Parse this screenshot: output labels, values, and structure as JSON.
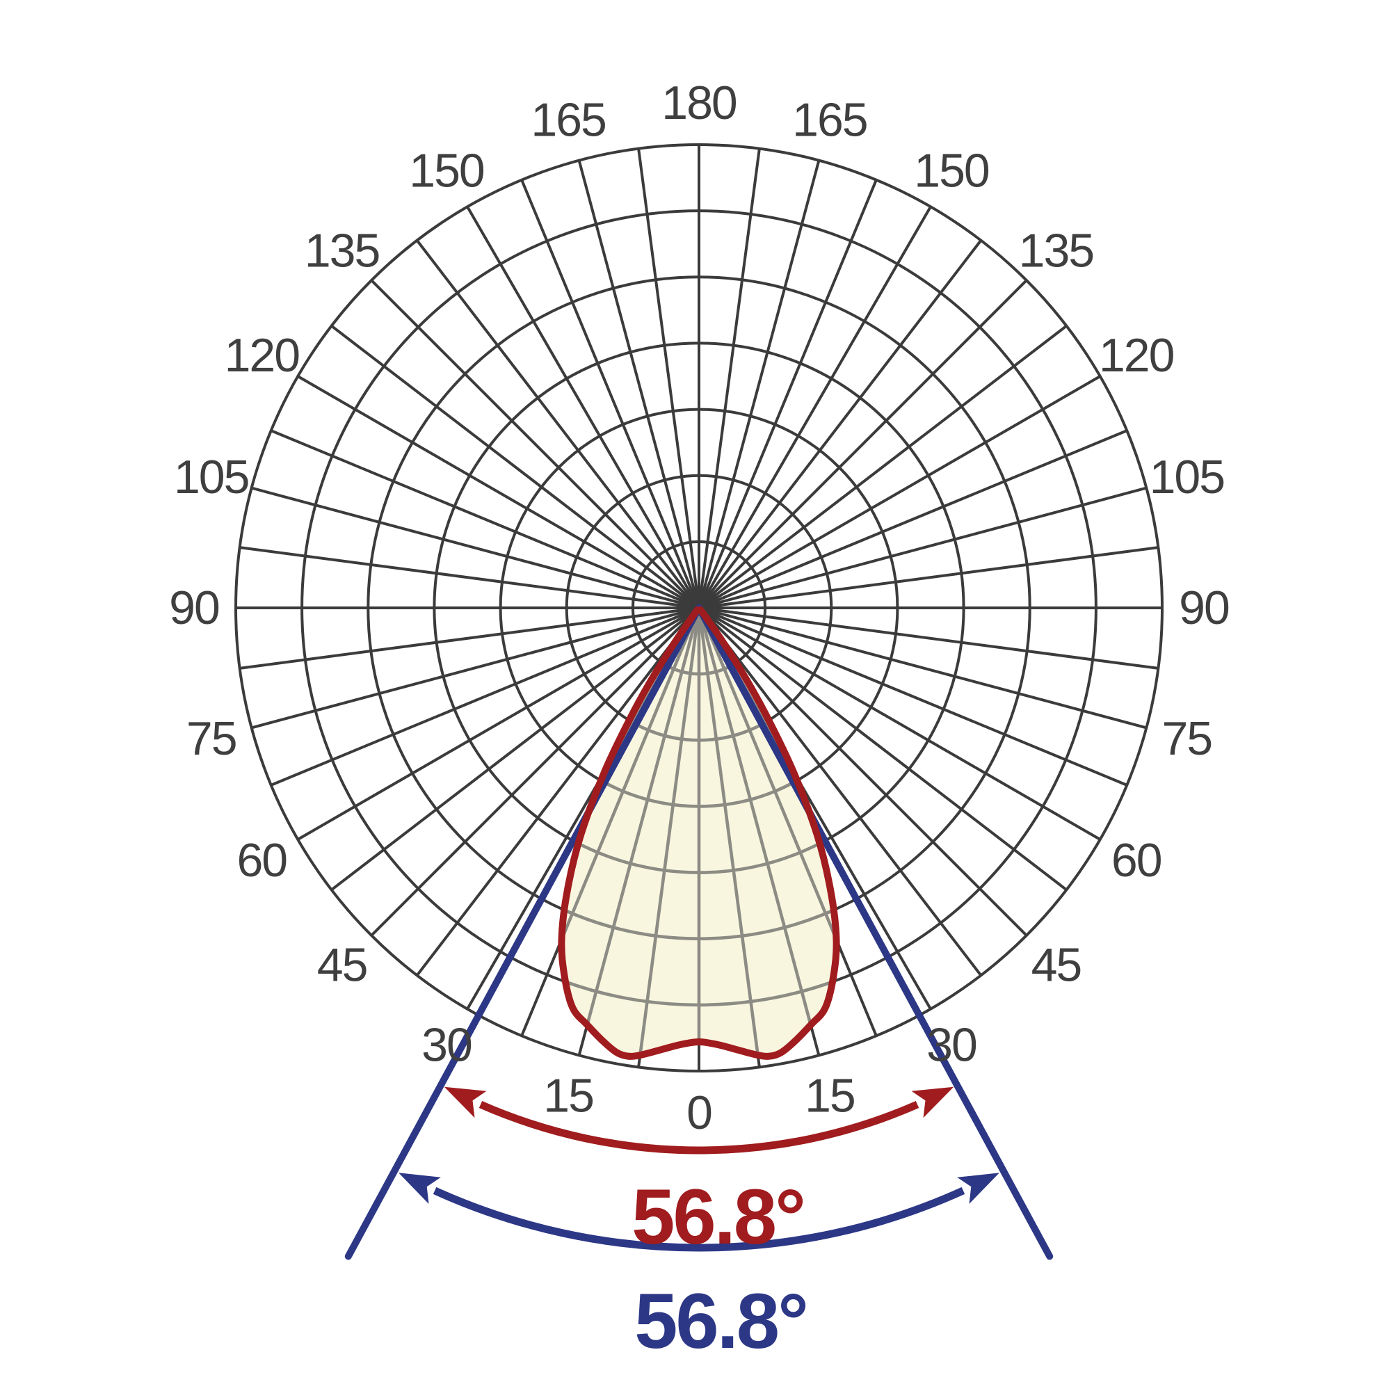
{
  "chart_data": {
    "type": "line",
    "subtype": "polar-photometric-luminous-intensity-diagram",
    "title": "",
    "angle_unit": "degrees",
    "angle_tick_step_deg": 15,
    "angle_grid_step_deg": 7.5,
    "radial_rings": 7,
    "angle_axis_range": [
      0,
      180
    ],
    "grid_on": true,
    "background": "#FFFFFF",
    "grid_color": "#3B3B3B",
    "grid_color_inside_beam": "#8C8C84",
    "tick_label_color": "#3F3F3F",
    "angle_ticks": [
      "0",
      "15",
      "30",
      "45",
      "60",
      "75",
      "90",
      "105",
      "120",
      "135",
      "150",
      "165",
      "180"
    ],
    "ticks": [
      {
        "label": "0",
        "angle": 0,
        "side": "bottom"
      },
      {
        "label": "15",
        "angle": 15,
        "side": "left"
      },
      {
        "label": "15",
        "angle": 15,
        "side": "right"
      },
      {
        "label": "30",
        "angle": 30,
        "side": "left"
      },
      {
        "label": "30",
        "angle": 30,
        "side": "right"
      },
      {
        "label": "45",
        "angle": 45,
        "side": "left"
      },
      {
        "label": "45",
        "angle": 45,
        "side": "right"
      },
      {
        "label": "60",
        "angle": 60,
        "side": "left"
      },
      {
        "label": "60",
        "angle": 60,
        "side": "right"
      },
      {
        "label": "75",
        "angle": 75,
        "side": "left"
      },
      {
        "label": "75",
        "angle": 75,
        "side": "right"
      },
      {
        "label": "90",
        "angle": 90,
        "side": "left"
      },
      {
        "label": "90",
        "angle": 90,
        "side": "right"
      },
      {
        "label": "105",
        "angle": 105,
        "side": "left"
      },
      {
        "label": "105",
        "angle": 105,
        "side": "right"
      },
      {
        "label": "120",
        "angle": 120,
        "side": "left"
      },
      {
        "label": "120",
        "angle": 120,
        "side": "right"
      },
      {
        "label": "135",
        "angle": 135,
        "side": "left"
      },
      {
        "label": "135",
        "angle": 135,
        "side": "right"
      },
      {
        "label": "150",
        "angle": 150,
        "side": "left"
      },
      {
        "label": "150",
        "angle": 150,
        "side": "right"
      },
      {
        "label": "165",
        "angle": 165,
        "side": "left"
      },
      {
        "label": "165",
        "angle": 165,
        "side": "right"
      },
      {
        "label": "180",
        "angle": 180,
        "side": "top"
      }
    ],
    "series": [
      {
        "name": "luminous-intensity-curve",
        "stroke_color": "#A01C1E",
        "fill_color": "#F9F6E0",
        "symmetric_about_0deg": true,
        "points_angle_deg_vs_relative_intensity": [
          [
            0,
            0.937
          ],
          [
            2.5,
            0.944
          ],
          [
            5,
            0.958
          ],
          [
            7.5,
            0.974
          ],
          [
            9,
            0.98
          ],
          [
            10.5,
            0.976
          ],
          [
            12.5,
            0.958
          ],
          [
            15,
            0.932
          ],
          [
            17.5,
            0.906
          ],
          [
            20,
            0.848
          ],
          [
            22.5,
            0.775
          ],
          [
            25,
            0.672
          ],
          [
            27.5,
            0.552
          ],
          [
            30,
            0.405
          ],
          [
            32,
            0.275
          ],
          [
            33.5,
            0.185
          ],
          [
            35,
            0.095
          ],
          [
            36.5,
            0.03
          ],
          [
            37.5,
            0.005
          ]
        ]
      }
    ],
    "beam_lines": {
      "color": "#2C3786",
      "half_angle_deg": 28.4,
      "full_angle_deg": 56.8
    },
    "annotations": [
      {
        "id": "beam-angle-c0",
        "label": "56.8°",
        "value": 56.8,
        "color": "#A01C1E"
      },
      {
        "id": "beam-angle-c90",
        "label": "56.8°",
        "value": 56.8,
        "color": "#2C3786"
      }
    ]
  }
}
